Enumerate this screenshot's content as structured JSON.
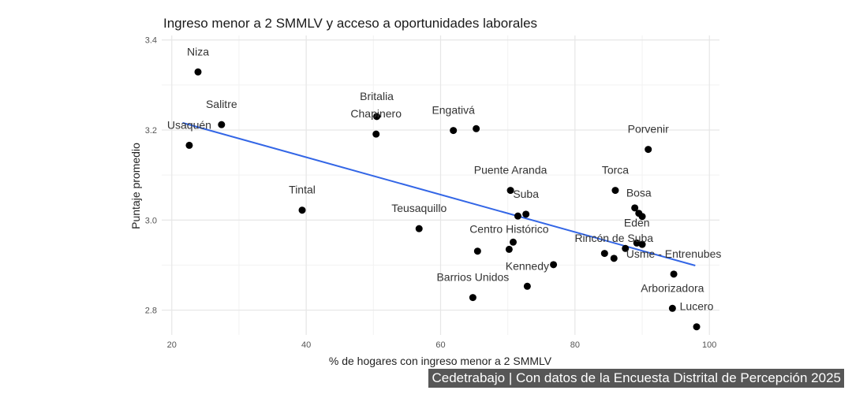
{
  "chart_data": {
    "type": "scatter",
    "title": "Ingreso menor a 2 SMMLV y acceso a oportunidades laborales",
    "xlabel": "% de hogares con ingreso menor a 2 SMMLV",
    "ylabel": "Puntaje promedio",
    "xlim": [
      18.5,
      101.5
    ],
    "ylim": [
      2.745,
      3.41
    ],
    "xticks": [
      20,
      40,
      60,
      80,
      100
    ],
    "yticks": [
      2.8,
      3.0,
      3.2,
      3.4
    ],
    "grid": true,
    "point_color": "#000000",
    "trend_color": "#3366e6",
    "trend_line": {
      "x": [
        21.6,
        97.9
      ],
      "y": [
        3.216,
        2.899
      ]
    },
    "points": [
      {
        "label": "Niza",
        "x": 23.9,
        "y": 3.329
      },
      {
        "label": "Salitre",
        "x": 27.4,
        "y": 3.212
      },
      {
        "label": "Usaquén",
        "x": 22.6,
        "y": 3.166
      },
      {
        "label": "Britalia",
        "x": 50.5,
        "y": 3.23
      },
      {
        "label": "Chapinero",
        "x": 50.4,
        "y": 3.191
      },
      {
        "label": "Engativá",
        "x": 61.9,
        "y": 3.199
      },
      {
        "label": "",
        "x": 65.3,
        "y": 3.203
      },
      {
        "label": "Tintal",
        "x": 39.4,
        "y": 3.022
      },
      {
        "label": "Teusaquillo",
        "x": 56.8,
        "y": 2.981
      },
      {
        "label": "Porvenir",
        "x": 90.9,
        "y": 3.157
      },
      {
        "label": "Torca",
        "x": 86.0,
        "y": 3.066
      },
      {
        "label": "Puente Aranda",
        "x": 70.4,
        "y": 3.066
      },
      {
        "label": "",
        "x": 71.5,
        "y": 3.009
      },
      {
        "label": "Suba",
        "x": 72.7,
        "y": 3.013
      },
      {
        "label": "",
        "x": 70.8,
        "y": 2.951
      },
      {
        "label": "Centro Histórico",
        "x": 70.2,
        "y": 2.935
      },
      {
        "label": "",
        "x": 65.5,
        "y": 2.931
      },
      {
        "label": "",
        "x": 76.8,
        "y": 2.901
      },
      {
        "label": "Kennedy",
        "x": 72.9,
        "y": 2.853
      },
      {
        "label": "Barrios Unidos",
        "x": 64.8,
        "y": 2.828
      },
      {
        "label": "",
        "x": 88.9,
        "y": 3.027
      },
      {
        "label": "Bosa",
        "x": 89.5,
        "y": 3.015
      },
      {
        "label": "",
        "x": 90.0,
        "y": 3.008
      },
      {
        "label": "Eden",
        "x": 89.2,
        "y": 2.949
      },
      {
        "label": "",
        "x": 90.0,
        "y": 2.946
      },
      {
        "label": "",
        "x": 87.5,
        "y": 2.937
      },
      {
        "label": "",
        "x": 84.4,
        "y": 2.926
      },
      {
        "label": "Rincón de Suba",
        "x": 85.8,
        "y": 2.915
      },
      {
        "label": "Usme - Entrenubes",
        "x": 94.7,
        "y": 2.88
      },
      {
        "label": "Arborizadora",
        "x": 94.5,
        "y": 2.804
      },
      {
        "label": "Lucero",
        "x": 98.1,
        "y": 2.763
      }
    ]
  },
  "caption": "Cedetrabajo | Con datos de la Encuesta Distrital de Percepción 2025"
}
